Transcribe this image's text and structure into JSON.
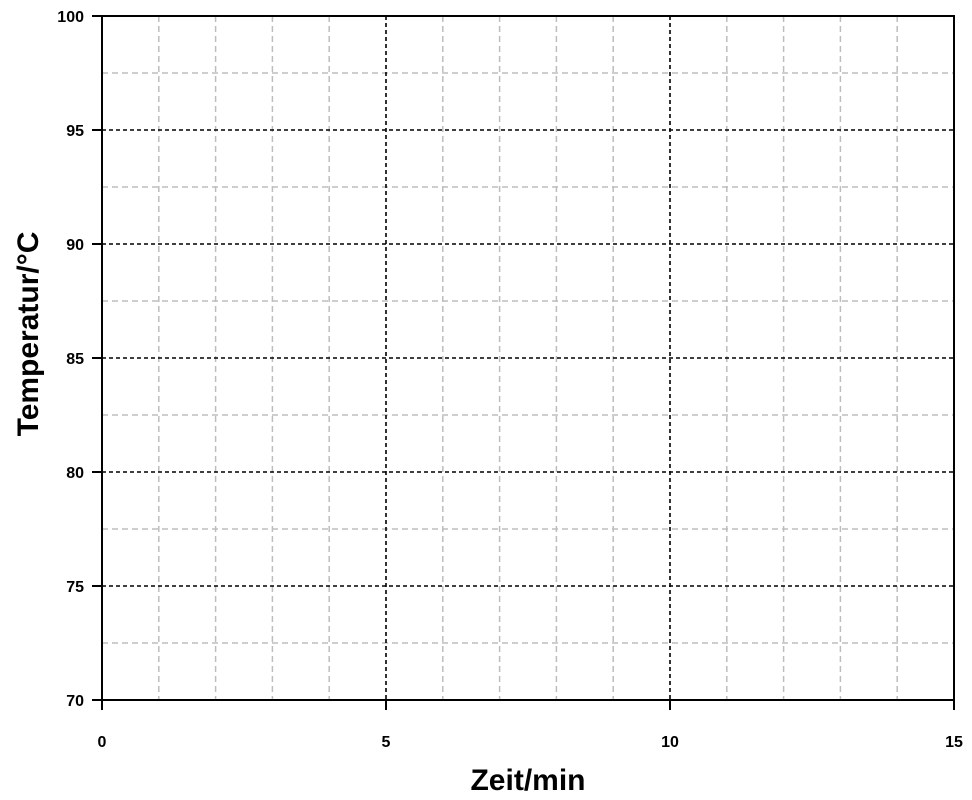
{
  "chart_data": {
    "type": "line",
    "title": "",
    "xlabel": "Zeit/min",
    "ylabel": "Temperatur/°C",
    "xlim": [
      0,
      15
    ],
    "ylim": [
      70,
      100
    ],
    "x_ticks": [
      0,
      5,
      10,
      15
    ],
    "y_ticks": [
      70,
      75,
      80,
      85,
      90,
      95,
      100
    ],
    "x_major_step": 5,
    "x_minor_step": 1,
    "y_major_step": 5,
    "y_minor_step": 2.5,
    "grid": true,
    "legend": false,
    "series": [],
    "colors": {
      "axis": "#000000",
      "major_grid": "#000000",
      "minor_grid": "#bdbdbd",
      "background": "#ffffff"
    }
  }
}
